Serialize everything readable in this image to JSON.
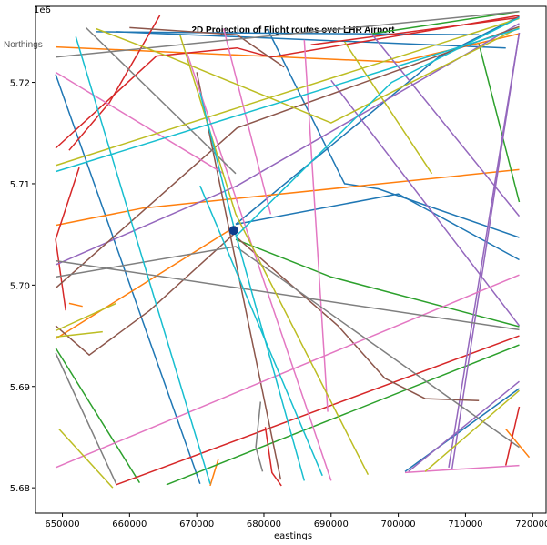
{
  "chart_data": {
    "type": "line",
    "title": "2D Projection of Flight routes over LHR Airport",
    "xlabel": "eastings",
    "ylabel": "Northings",
    "offset_label": "1e6",
    "xlim": [
      646000,
      722000
    ],
    "ylim": [
      5677500,
      5727500
    ],
    "x_ticks": [
      650000,
      660000,
      670000,
      680000,
      690000,
      700000,
      710000,
      720000
    ],
    "x_tick_labels": [
      "650000",
      "660000",
      "670000",
      "680000",
      "690000",
      "700000",
      "710000",
      "720000"
    ],
    "y_ticks": [
      5680000,
      5690000,
      5700000,
      5710000,
      5720000
    ],
    "y_tick_labels": [
      "5.68",
      "5.69",
      "5.70",
      "5.71",
      "5.72"
    ],
    "grid": false,
    "airport_marker": {
      "x": 675500,
      "y": 5705400,
      "color": "#0d3d8c"
    },
    "series": [
      {
        "color": "#1f77b4",
        "x": [
          655000,
          712000
        ],
        "y": [
          5725000,
          5724700
        ]
      },
      {
        "color": "#1f77b4",
        "x": [
          658000,
          716000
        ],
        "y": [
          5725000,
          5723400
        ]
      },
      {
        "color": "#1f77b4",
        "x": [
          649000,
          670500
        ],
        "y": [
          5720800,
          5680400
        ]
      },
      {
        "color": "#1f77b4",
        "x": [
          675800,
          706000,
          718000
        ],
        "y": [
          5706000,
          5722500,
          5726500
        ]
      },
      {
        "color": "#1f77b4",
        "x": [
          675800,
          700000,
          718000
        ],
        "y": [
          5706000,
          5709000,
          5702500
        ]
      },
      {
        "color": "#1f77b4",
        "x": [
          680500,
          692000,
          697000,
          718000
        ],
        "y": [
          5725300,
          5710000,
          5709500,
          5704700
        ]
      },
      {
        "color": "#1f77b4",
        "x": [
          701000,
          718000
        ],
        "y": [
          5681600,
          5689800
        ]
      },
      {
        "color": "#ff7f0e",
        "x": [
          649000,
          700000,
          718000
        ],
        "y": [
          5723500,
          5722000,
          5724800
        ]
      },
      {
        "color": "#ff7f0e",
        "x": [
          649000,
          662000,
          718000
        ],
        "y": [
          5705900,
          5707600,
          5711400
        ]
      },
      {
        "color": "#ff7f0e",
        "x": [
          649000,
          675800
        ],
        "y": [
          5694700,
          5705800
        ]
      },
      {
        "color": "#ff7f0e",
        "x": [
          651000,
          653000
        ],
        "y": [
          5698200,
          5697900
        ]
      },
      {
        "color": "#ff7f0e",
        "x": [
          672000,
          673200
        ],
        "y": [
          5680200,
          5682800
        ]
      },
      {
        "color": "#ff7f0e",
        "x": [
          716000,
          719500
        ],
        "y": [
          5685800,
          5683000
        ]
      },
      {
        "color": "#2ca02c",
        "x": [
          649000,
          661500
        ],
        "y": [
          5693800,
          5680500
        ]
      },
      {
        "color": "#2ca02c",
        "x": [
          665500,
          718000
        ],
        "y": [
          5680300,
          5694100
        ]
      },
      {
        "color": "#2ca02c",
        "x": [
          675800,
          690000,
          718000
        ],
        "y": [
          5704500,
          5700800,
          5695900
        ]
      },
      {
        "color": "#2ca02c",
        "x": [
          696000,
          718000
        ],
        "y": [
          5724800,
          5727000
        ]
      },
      {
        "color": "#2ca02c",
        "x": [
          712000,
          718000
        ],
        "y": [
          5723800,
          5708200
        ]
      },
      {
        "color": "#d62728",
        "x": [
          649000,
          664000,
          676000,
          681000,
          718000
        ],
        "y": [
          5713500,
          5722600,
          5723400,
          5722500,
          5726600
        ]
      },
      {
        "color": "#d62728",
        "x": [
          651000,
          657000,
          664500
        ],
        "y": [
          5713300,
          5718000,
          5726600
        ]
      },
      {
        "color": "#d62728",
        "x": [
          652500,
          649000,
          650500
        ],
        "y": [
          5711600,
          5704500,
          5697500
        ]
      },
      {
        "color": "#d62728",
        "x": [
          658000,
          718000
        ],
        "y": [
          5680300,
          5695000
        ]
      },
      {
        "color": "#d62728",
        "x": [
          680200,
          681200,
          682600
        ],
        "y": [
          5686000,
          5681500,
          5680200
        ]
      },
      {
        "color": "#d62728",
        "x": [
          687000,
          718000
        ],
        "y": [
          5723700,
          5726400
        ]
      },
      {
        "color": "#d62728",
        "x": [
          716000,
          718000
        ],
        "y": [
          5682200,
          5688000
        ]
      },
      {
        "color": "#9467bd",
        "x": [
          649000,
          676000,
          718000
        ],
        "y": [
          5702000,
          5709800,
          5725800
        ]
      },
      {
        "color": "#9467bd",
        "x": [
          690000,
          718000
        ],
        "y": [
          5720200,
          5696000
        ]
      },
      {
        "color": "#9467bd",
        "x": [
          696000,
          718000
        ],
        "y": [
          5724800,
          5706800
        ]
      },
      {
        "color": "#9467bd",
        "x": [
          718000,
          708000
        ],
        "y": [
          5724900,
          5681900
        ]
      },
      {
        "color": "#9467bd",
        "x": [
          718000,
          707500
        ],
        "y": [
          5724900,
          5682000
        ]
      },
      {
        "color": "#9467bd",
        "x": [
          701500,
          718000
        ],
        "y": [
          5681600,
          5690500
        ]
      },
      {
        "color": "#8c564b",
        "x": [
          649000,
          676000,
          718000
        ],
        "y": [
          5699700,
          5715500,
          5725500
        ]
      },
      {
        "color": "#8c564b",
        "x": [
          660000,
          676000,
          683000
        ],
        "y": [
          5725400,
          5724700,
          5721500
        ]
      },
      {
        "color": "#8c564b",
        "x": [
          670000,
          682500
        ],
        "y": [
          5721000,
          5680800
        ]
      },
      {
        "color": "#8c564b",
        "x": [
          649000,
          654000,
          663000,
          675800
        ],
        "y": [
          5696000,
          5693100,
          5697500,
          5705200
        ]
      },
      {
        "color": "#8c564b",
        "x": [
          675800,
          691000,
          698000,
          704000,
          712000
        ],
        "y": [
          5704800,
          5696000,
          5690800,
          5688800,
          5688600
        ]
      },
      {
        "color": "#e377c2",
        "x": [
          649000,
          674000
        ],
        "y": [
          5721000,
          5711000
        ]
      },
      {
        "color": "#e377c2",
        "x": [
          649000,
          718000
        ],
        "y": [
          5682000,
          5701000
        ]
      },
      {
        "color": "#e377c2",
        "x": [
          668500,
          690000
        ],
        "y": [
          5723000,
          5680700
        ]
      },
      {
        "color": "#e377c2",
        "x": [
          674000,
          681000
        ],
        "y": [
          5725300,
          5707000
        ]
      },
      {
        "color": "#e377c2",
        "x": [
          686000,
          689500
        ],
        "y": [
          5724200,
          5687500
        ]
      },
      {
        "color": "#e377c2",
        "x": [
          701000,
          718000
        ],
        "y": [
          5681500,
          5682200
        ]
      },
      {
        "color": "#7f7f7f",
        "x": [
          649000,
          675800,
          718000
        ],
        "y": [
          5700800,
          5703800,
          5684000
        ]
      },
      {
        "color": "#7f7f7f",
        "x": [
          649000,
          718000
        ],
        "y": [
          5702400,
          5695600
        ]
      },
      {
        "color": "#7f7f7f",
        "x": [
          653500,
          675800
        ],
        "y": [
          5725400,
          5711000
        ]
      },
      {
        "color": "#7f7f7f",
        "x": [
          649000,
          718000
        ],
        "y": [
          5722500,
          5727000
        ]
      },
      {
        "color": "#7f7f7f",
        "x": [
          649000,
          658000
        ],
        "y": [
          5693300,
          5680400
        ]
      },
      {
        "color": "#7f7f7f",
        "x": [
          679500,
          678800,
          679800
        ],
        "y": [
          5688500,
          5684000,
          5681600
        ]
      },
      {
        "color": "#bcbd22",
        "x": [
          649000,
          718000
        ],
        "y": [
          5711800,
          5726300
        ]
      },
      {
        "color": "#bcbd22",
        "x": [
          649000,
          658000
        ],
        "y": [
          5695500,
          5698200
        ]
      },
      {
        "color": "#bcbd22",
        "x": [
          649000,
          656000
        ],
        "y": [
          5694900,
          5695400
        ]
      },
      {
        "color": "#bcbd22",
        "x": [
          655000,
          666000,
          690000,
          718000
        ],
        "y": [
          5725300,
          5722500,
          5716000,
          5725400
        ]
      },
      {
        "color": "#bcbd22",
        "x": [
          667500,
          675800,
          695500
        ],
        "y": [
          5724700,
          5707000,
          5681300
        ]
      },
      {
        "color": "#bcbd22",
        "x": [
          649500,
          657500
        ],
        "y": [
          5685800,
          5680000
        ]
      },
      {
        "color": "#bcbd22",
        "x": [
          692000,
          705000
        ],
        "y": [
          5724000,
          5711000
        ]
      },
      {
        "color": "#bcbd22",
        "x": [
          704000,
          718000
        ],
        "y": [
          5681600,
          5689600
        ]
      },
      {
        "color": "#17becf",
        "x": [
          649000,
          718000
        ],
        "y": [
          5711200,
          5725300
        ]
      },
      {
        "color": "#17becf",
        "x": [
          652000,
          672000
        ],
        "y": [
          5724500,
          5680400
        ]
      },
      {
        "color": "#17becf",
        "x": [
          670500,
          675800,
          686000
        ],
        "y": [
          5719000,
          5705000,
          5680700
        ]
      },
      {
        "color": "#17becf",
        "x": [
          670500,
          688700
        ],
        "y": [
          5709800,
          5681200
        ]
      },
      {
        "color": "#17becf",
        "x": [
          675800,
          699000,
          718000
        ],
        "y": [
          5704800,
          5720000,
          5726400
        ]
      }
    ]
  }
}
